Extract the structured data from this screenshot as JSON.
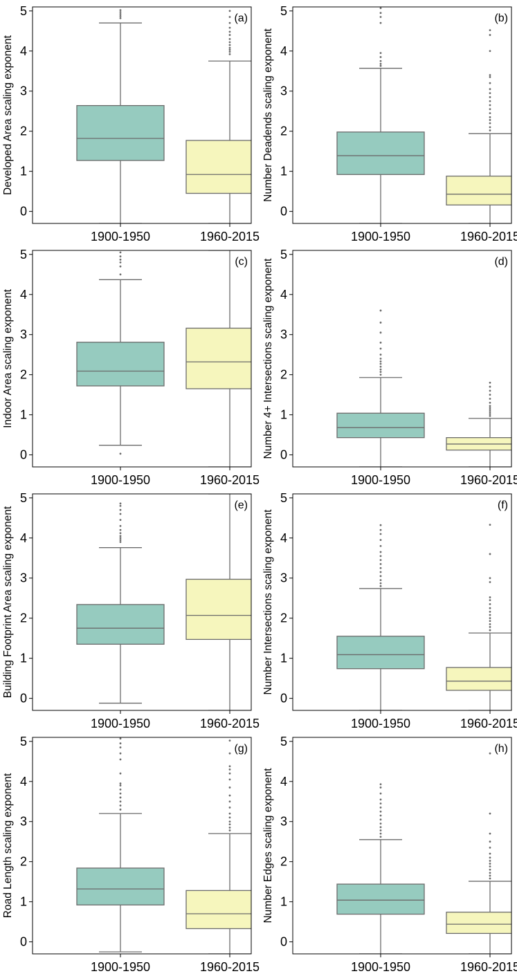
{
  "colors": {
    "group1": "#96cbbf",
    "group2": "#f6f6bd",
    "line": "#6b6b6b",
    "outlier": "#6b6b6b"
  },
  "chart_data": [
    {
      "type": "box",
      "panel": "(a)",
      "ylabel": "Developed Area scaling exponent",
      "categories": [
        "1900-1950",
        "1960-2015"
      ],
      "ylim": [
        -0.3,
        5.1
      ],
      "yticks": [
        0,
        1,
        2,
        3,
        4,
        5
      ],
      "boxes": [
        {
          "group": "1900-1950",
          "q1": 1.27,
          "median": 1.82,
          "q3": 2.64,
          "whisker_low": -0.3,
          "whisker_high": 4.7,
          "outliers": [
            4.82,
            4.87,
            4.92,
            4.97,
            5.02
          ]
        },
        {
          "group": "1960-2015",
          "q1": 0.45,
          "median": 0.92,
          "q3": 1.77,
          "whisker_low": -0.3,
          "whisker_high": 3.75,
          "outliers": [
            3.92,
            3.98,
            4.03,
            4.08,
            4.15,
            4.22,
            4.3,
            4.4,
            4.48,
            4.58,
            4.7,
            4.85,
            5.0
          ]
        }
      ]
    },
    {
      "type": "box",
      "panel": "(b)",
      "ylabel": "Number Deadends scaling exponent",
      "categories": [
        "1900-1950",
        "1960-2015"
      ],
      "ylim": [
        -0.3,
        5.1
      ],
      "yticks": [
        0,
        1,
        2,
        3,
        4,
        5
      ],
      "boxes": [
        {
          "group": "1900-1950",
          "q1": 0.92,
          "median": 1.39,
          "q3": 1.98,
          "whisker_low": -0.3,
          "whisker_high": 3.57,
          "outliers": [
            3.63,
            3.68,
            3.75,
            3.85,
            3.95,
            4.7,
            4.85,
            4.95,
            5.07
          ]
        },
        {
          "group": "1960-2015",
          "q1": 0.16,
          "median": 0.43,
          "q3": 0.88,
          "whisker_low": -0.3,
          "whisker_high": 1.94,
          "outliers": [
            2.02,
            2.1,
            2.2,
            2.28,
            2.35,
            2.45,
            2.55,
            2.65,
            2.75,
            2.85,
            2.95,
            3.05,
            3.2,
            3.35,
            3.4,
            4.0,
            4.4,
            4.52
          ]
        }
      ]
    },
    {
      "type": "box",
      "panel": "(c)",
      "ylabel": "Indoor Area scaling exponent",
      "categories": [
        "1900-1950",
        "1960-2015"
      ],
      "ylim": [
        -0.3,
        5.1
      ],
      "yticks": [
        0,
        1,
        2,
        3,
        4,
        5
      ],
      "boxes": [
        {
          "group": "1900-1950",
          "q1": 1.72,
          "median": 2.09,
          "q3": 2.81,
          "whisker_low": 0.24,
          "whisker_high": 4.37,
          "outliers": [
            0.03,
            4.5,
            4.7,
            4.8,
            4.87,
            4.95,
            5.05
          ]
        },
        {
          "group": "1960-2015",
          "q1": 1.65,
          "median": 2.32,
          "q3": 3.16,
          "whisker_low": -0.3,
          "whisker_high": 5.1,
          "outliers": []
        }
      ]
    },
    {
      "type": "box",
      "panel": "(d)",
      "ylabel": "Number 4+ Intersections scaling exponent",
      "categories": [
        "1900-1950",
        "1960-2015"
      ],
      "ylim": [
        -0.3,
        5.1
      ],
      "yticks": [
        0,
        1,
        2,
        3,
        4,
        5
      ],
      "boxes": [
        {
          "group": "1900-1950",
          "q1": 0.43,
          "median": 0.68,
          "q3": 1.04,
          "whisker_low": -0.3,
          "whisker_high": 1.93,
          "outliers": [
            2.0,
            2.07,
            2.13,
            2.2,
            2.27,
            2.33,
            2.4,
            2.5,
            2.65,
            2.8,
            3.05,
            3.3,
            3.6
          ]
        },
        {
          "group": "1960-2015",
          "q1": 0.12,
          "median": 0.27,
          "q3": 0.43,
          "whisker_low": -0.3,
          "whisker_high": 0.91,
          "outliers": [
            0.97,
            1.02,
            1.07,
            1.12,
            1.17,
            1.22,
            1.3,
            1.4,
            1.5,
            1.6,
            1.7,
            1.8
          ]
        }
      ]
    },
    {
      "type": "box",
      "panel": "(e)",
      "ylabel": "Building Footprint Area scaling exponent",
      "categories": [
        "1900-1950",
        "1960-2015"
      ],
      "ylim": [
        -0.3,
        5.1
      ],
      "yticks": [
        0,
        1,
        2,
        3,
        4,
        5
      ],
      "boxes": [
        {
          "group": "1900-1950",
          "q1": 1.35,
          "median": 1.75,
          "q3": 2.34,
          "whisker_low": -0.12,
          "whisker_high": 3.76,
          "outliers": [
            3.9,
            3.95,
            4.0,
            4.05,
            4.12,
            4.2,
            4.3,
            4.45,
            4.6,
            4.7,
            4.8,
            4.86
          ]
        },
        {
          "group": "1960-2015",
          "q1": 1.47,
          "median": 2.07,
          "q3": 2.97,
          "whisker_low": -0.3,
          "whisker_high": 5.1,
          "outliers": []
        }
      ]
    },
    {
      "type": "box",
      "panel": "(f)",
      "ylabel": "Number Intersections scaling exponent",
      "categories": [
        "1900-1950",
        "1960-2015"
      ],
      "ylim": [
        -0.3,
        5.1
      ],
      "yticks": [
        0,
        1,
        2,
        3,
        4,
        5
      ],
      "boxes": [
        {
          "group": "1900-1950",
          "q1": 0.74,
          "median": 1.09,
          "q3": 1.55,
          "whisker_low": -0.3,
          "whisker_high": 2.74,
          "outliers": [
            2.8,
            2.87,
            2.95,
            3.05,
            3.15,
            3.25,
            3.35,
            3.45,
            3.55,
            3.65,
            3.8,
            3.95,
            4.1,
            4.2,
            4.32
          ]
        },
        {
          "group": "1960-2015",
          "q1": 0.2,
          "median": 0.43,
          "q3": 0.77,
          "whisker_low": -0.3,
          "whisker_high": 1.63,
          "outliers": [
            1.7,
            1.78,
            1.85,
            1.93,
            2.0,
            2.08,
            2.16,
            2.25,
            2.35,
            2.45,
            2.52,
            2.9,
            3.0,
            3.6,
            4.33
          ]
        }
      ]
    },
    {
      "type": "box",
      "panel": "(g)",
      "ylabel": "Road Length scaling exponent",
      "categories": [
        "1900-1950",
        "1960-2015"
      ],
      "ylim": [
        -0.3,
        5.1
      ],
      "yticks": [
        0,
        1,
        2,
        3,
        4,
        5
      ],
      "boxes": [
        {
          "group": "1900-1950",
          "q1": 0.92,
          "median": 1.32,
          "q3": 1.84,
          "whisker_low": -0.25,
          "whisker_high": 3.2,
          "outliers": [
            3.3,
            3.4,
            3.5,
            3.6,
            3.7,
            3.8,
            3.9,
            3.95,
            4.2,
            4.55,
            4.7,
            4.85,
            4.95,
            5.07
          ]
        },
        {
          "group": "1960-2015",
          "q1": 0.33,
          "median": 0.7,
          "q3": 1.28,
          "whisker_low": -0.3,
          "whisker_high": 2.7,
          "outliers": [
            2.78,
            2.85,
            2.93,
            3.0,
            3.1,
            3.2,
            3.35,
            3.5,
            3.65,
            3.85,
            4.05,
            4.2,
            4.3,
            4.38,
            4.7,
            5.02
          ]
        }
      ]
    },
    {
      "type": "box",
      "panel": "(h)",
      "ylabel": "Number Edges scaling exponent",
      "categories": [
        "1900-1950",
        "1960-2015"
      ],
      "ylim": [
        -0.3,
        5.1
      ],
      "yticks": [
        0,
        1,
        2,
        3,
        4,
        5
      ],
      "boxes": [
        {
          "group": "1900-1950",
          "q1": 0.69,
          "median": 1.04,
          "q3": 1.44,
          "whisker_low": -0.3,
          "whisker_high": 2.55,
          "outliers": [
            2.62,
            2.7,
            2.78,
            2.86,
            2.95,
            3.05,
            3.15,
            3.25,
            3.35,
            3.45,
            3.55,
            3.7,
            3.85,
            3.93
          ]
        },
        {
          "group": "1960-2015",
          "q1": 0.21,
          "median": 0.44,
          "q3": 0.74,
          "whisker_low": -0.3,
          "whisker_high": 1.51,
          "outliers": [
            1.58,
            1.65,
            1.72,
            1.8,
            1.88,
            1.95,
            2.02,
            2.1,
            2.2,
            2.35,
            2.5,
            2.7,
            3.2,
            4.7
          ]
        }
      ]
    }
  ]
}
